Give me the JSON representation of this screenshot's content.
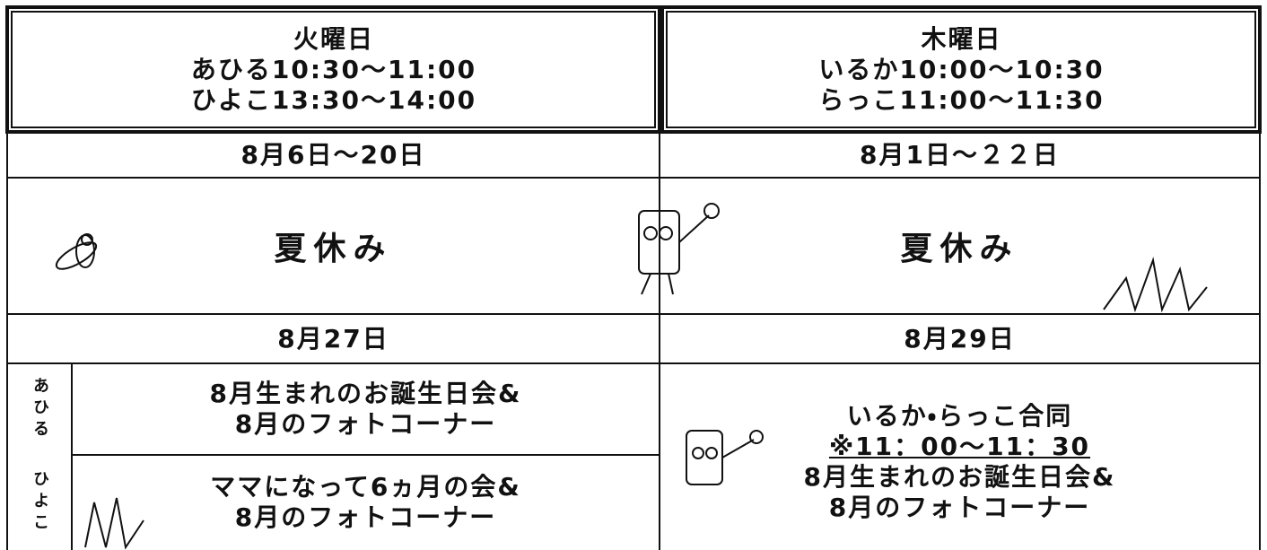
{
  "header": {
    "tuesday": {
      "day": "火曜日",
      "lines": [
        "あひる10:30〜11:00",
        "ひよこ13:30〜14:00"
      ]
    },
    "thursday": {
      "day": "木曜日",
      "lines": [
        "いるか10:00〜10:30",
        "らっこ11:00〜11:30"
      ]
    }
  },
  "rows": {
    "dates1": {
      "tuesday": "8月6日〜20日",
      "thursday": "8月1日〜２２日"
    },
    "holiday": {
      "tuesday": "夏休み",
      "thursday": "夏休み"
    },
    "dates2": {
      "tuesday": "8月27日",
      "thursday": "8月29日"
    },
    "events": {
      "tuesday": [
        {
          "group": "あひる",
          "lines": [
            "8月生まれのお誕生日会&",
            "8月のフォトコーナー"
          ]
        },
        {
          "group": "ひよこ",
          "lines": [
            "ママになって6ヵ月の会&",
            "8月のフォトコーナー"
          ]
        }
      ],
      "thursday": {
        "lines": [
          "いるか・らっこ合同",
          "※11：00〜11：30",
          "8月生まれのお誕生日会&",
          "8月のフォトコーナー"
        ]
      }
    }
  }
}
